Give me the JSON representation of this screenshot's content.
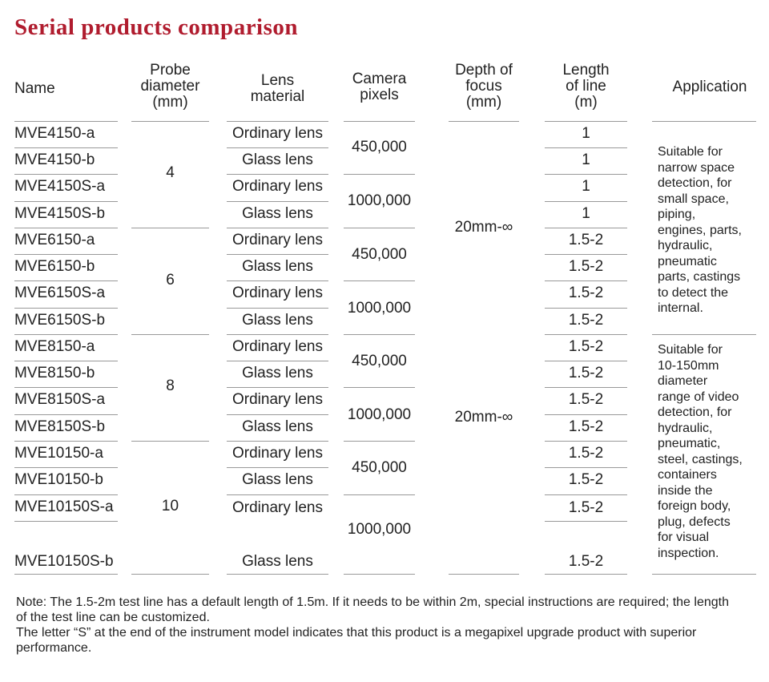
{
  "title": "Serial products comparison",
  "headers": {
    "name": "Name",
    "probe": "Probe\ndiameter\n(mm)",
    "lens": "Lens\nmaterial",
    "camera": "Camera\npixels",
    "depth": "Depth of\nfocus\n(mm)",
    "length": "Length\nof line\n(m)",
    "application": "Application"
  },
  "rows": [
    {
      "name": "MVE4150-a",
      "lens": "Ordinary lens",
      "length": "1"
    },
    {
      "name": "MVE4150-b",
      "lens": "Glass lens",
      "length": "1"
    },
    {
      "name": "MVE4150S-a",
      "lens": "Ordinary lens",
      "length": "1"
    },
    {
      "name": "MVE4150S-b",
      "lens": "Glass lens",
      "length": "1"
    },
    {
      "name": "MVE6150-a",
      "lens": "Ordinary lens",
      "length": "1.5-2"
    },
    {
      "name": "MVE6150-b",
      "lens": "Glass lens",
      "length": "1.5-2"
    },
    {
      "name": "MVE6150S-a",
      "lens": "Ordinary lens",
      "length": "1.5-2"
    },
    {
      "name": "MVE6150S-b",
      "lens": "Glass lens",
      "length": "1.5-2"
    },
    {
      "name": "MVE8150-a",
      "lens": "Ordinary lens",
      "length": "1.5-2"
    },
    {
      "name": "MVE8150-b",
      "lens": "Glass lens",
      "length": "1.5-2"
    },
    {
      "name": "MVE8150S-a",
      "lens": "Ordinary lens",
      "length": "1.5-2"
    },
    {
      "name": "MVE8150S-b",
      "lens": "Glass lens",
      "length": "1.5-2"
    },
    {
      "name": "MVE10150-a",
      "lens": "Ordinary lens",
      "length": "1.5-2"
    },
    {
      "name": "MVE10150-b",
      "lens": "Glass lens",
      "length": "1.5-2"
    },
    {
      "name": "MVE10150S-a",
      "lens": "Ordinary lens",
      "length": "1.5-2"
    },
    {
      "name": "MVE10150S-b",
      "lens": "Glass lens",
      "length": "1.5-2"
    }
  ],
  "probe_groups": [
    "4",
    "6",
    "8",
    "10"
  ],
  "camera_groups": [
    "450,000",
    "1000,000",
    "450,000",
    "1000,000",
    "450,000",
    "1000,000",
    "450,000",
    "1000,000"
  ],
  "depth_groups": [
    "20mm-∞",
    "20mm-∞"
  ],
  "application_groups": [
    "Suitable for\nnarrow space\ndetection, for\nsmall space,\npiping,\nengines, parts,\nhydraulic,\npneumatic\nparts, castings\nto detect the\ninternal.",
    "Suitable for\n10-150mm\ndiameter\nrange of video\ndetection, for\nhydraulic,\npneumatic,\nsteel, castings,\ncontainers\ninside the\nforeign body,\nplug, defects\nfor visual\ninspection."
  ],
  "note": [
    "Note: The 1.5-2m test line has a default length of 1.5m. If it needs to be within 2m, special instructions are required; the length of the test line can be customized.",
    "The letter “S” at the end of the instrument model indicates that this product is a megapixel upgrade product with superior performance."
  ],
  "colors": {
    "title": "#b01c2e",
    "rule": "#999999"
  }
}
